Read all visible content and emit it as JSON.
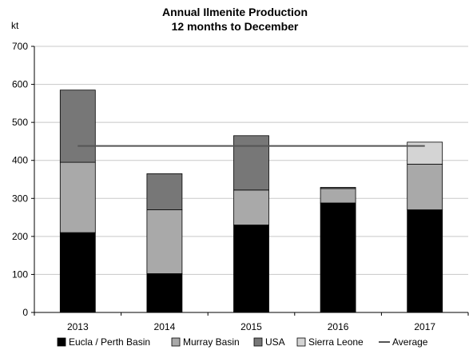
{
  "chart_data": {
    "type": "bar",
    "stacked": true,
    "title": "Annual Ilmenite Production",
    "subtitle": "12 months to December",
    "ylabel": "kt",
    "xlabel": "",
    "ylim": [
      0,
      700
    ],
    "yticks": [
      0,
      100,
      200,
      300,
      400,
      500,
      600,
      700
    ],
    "grid": true,
    "legend_position": "bottom",
    "categories": [
      "2013",
      "2014",
      "2015",
      "2016",
      "2017"
    ],
    "series": [
      {
        "name": "Eucla / Perth Basin",
        "color": "#000000",
        "values": [
          210,
          102,
          230,
          288,
          270
        ]
      },
      {
        "name": "Murray Basin",
        "color": "#a9a9a9",
        "values": [
          185,
          168,
          92,
          38,
          120
        ]
      },
      {
        "name": "USA",
        "color": "#777777",
        "values": [
          190,
          95,
          143,
          3,
          0
        ]
      },
      {
        "name": "Sierra Leone",
        "color": "#d4d4d4",
        "values": [
          0,
          0,
          0,
          0,
          58
        ]
      }
    ],
    "average": {
      "name": "Average",
      "value": 438,
      "color": "#555555"
    }
  }
}
